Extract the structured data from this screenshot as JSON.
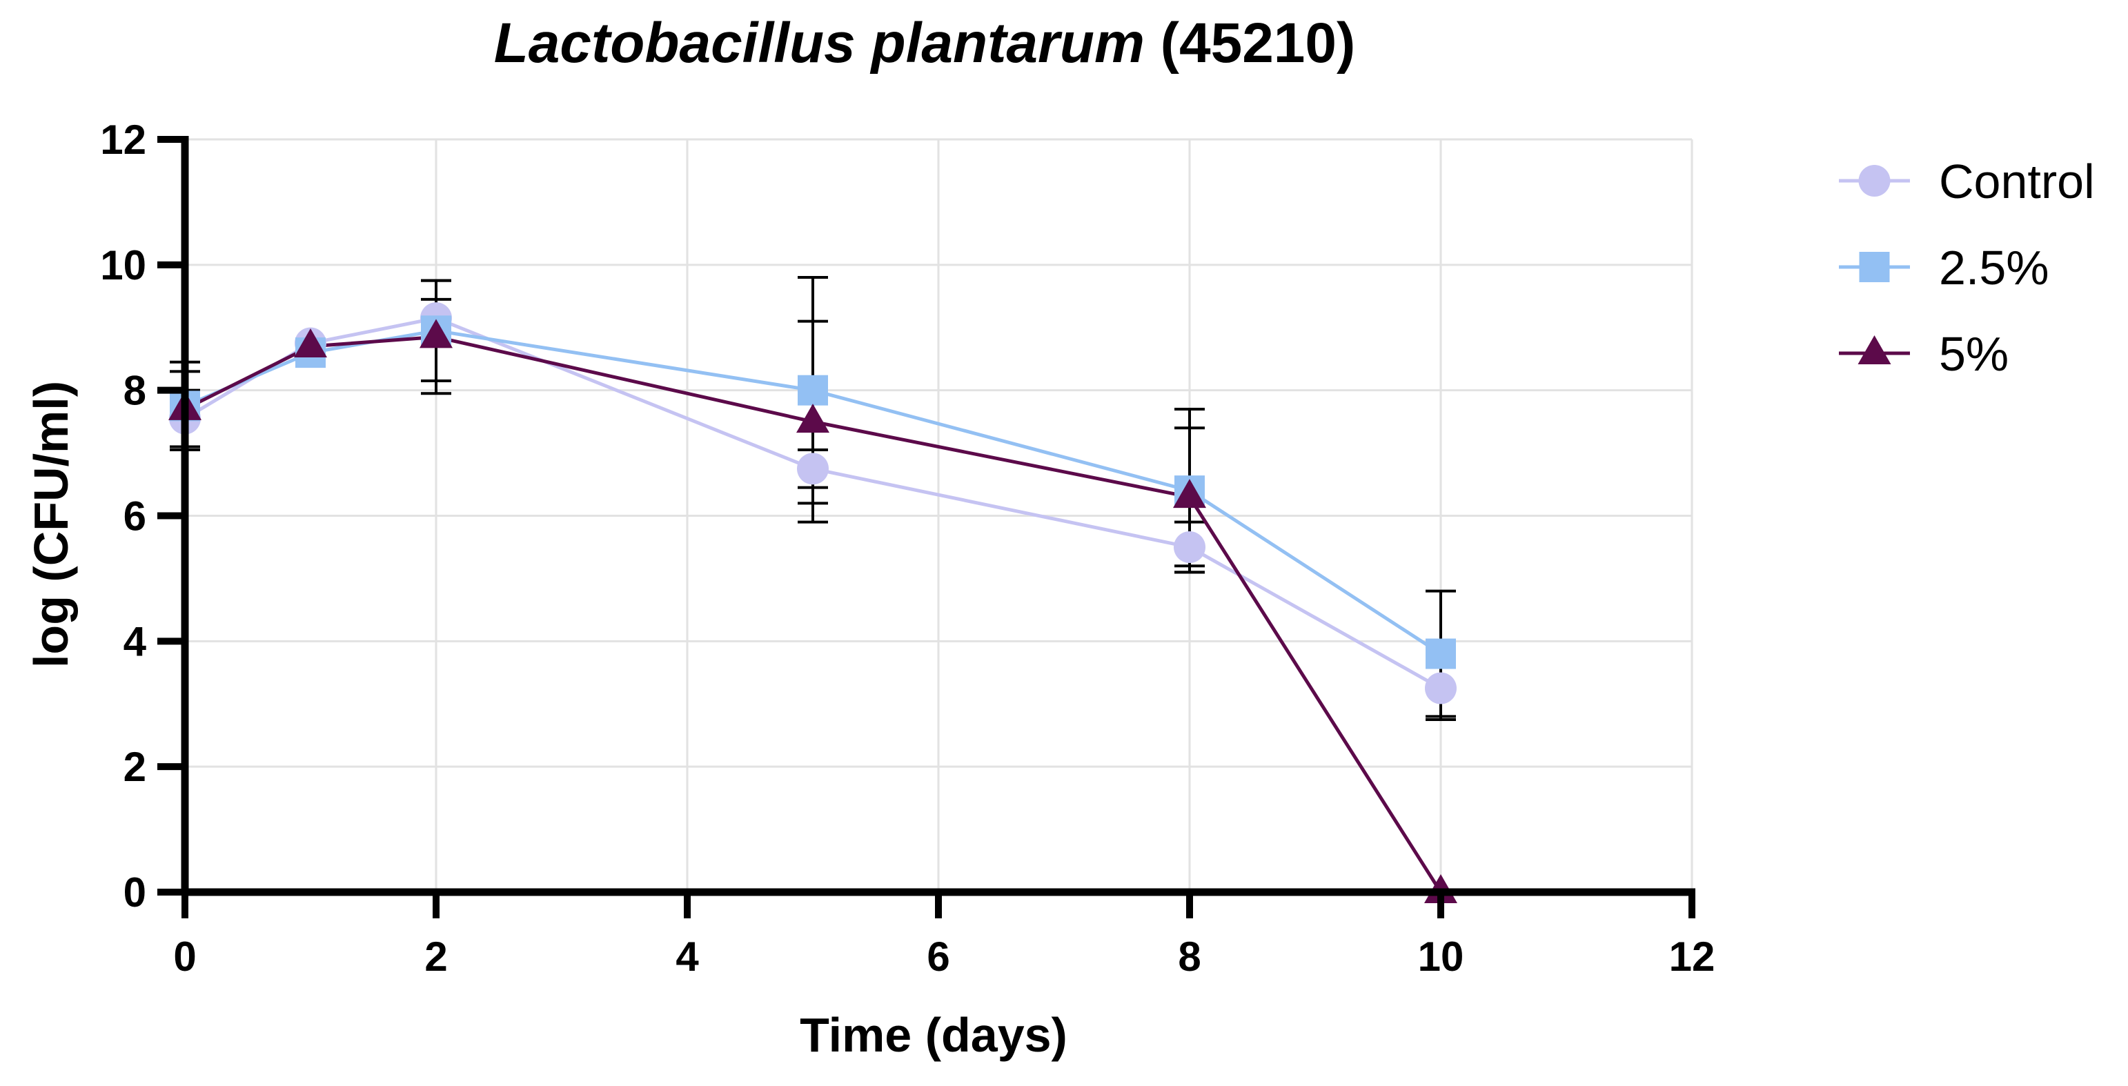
{
  "chart_data": {
    "type": "line",
    "title": "Lactobacillus plantarum (45210)",
    "title_italic_part": "Lactobacillus plantarum",
    "title_plain_part": " (45210)",
    "xlabel": "Time (days)",
    "ylabel": "log (CFU/ml)",
    "xlim": [
      0,
      12
    ],
    "ylim": [
      0,
      12
    ],
    "xticks": [
      "0",
      "2",
      "4",
      "6",
      "8",
      "10",
      "12"
    ],
    "yticks": [
      "0",
      "2",
      "4",
      "6",
      "8",
      "10",
      "12"
    ],
    "grid": true,
    "legend_position": "right",
    "series": [
      {
        "name": "Control",
        "marker": "circle",
        "color": "#c5c3f2",
        "x": [
          0,
          1,
          2,
          5,
          8,
          10
        ],
        "y": [
          7.55,
          8.75,
          9.15,
          6.75,
          5.5,
          3.25
        ],
        "err": [
          0.45,
          0.05,
          0.3,
          0.3,
          0.4,
          0.5
        ]
      },
      {
        "name": "2.5%",
        "marker": "square",
        "color": "#93c0f3",
        "x": [
          0,
          1,
          2,
          5,
          8,
          10
        ],
        "y": [
          7.75,
          8.6,
          8.95,
          8.0,
          6.4,
          3.8
        ],
        "err": [
          0.7,
          0.05,
          0.8,
          1.8,
          1.3,
          1.0
        ]
      },
      {
        "name": "5%",
        "marker": "triangle",
        "color": "#5c0a4a",
        "x": [
          0,
          1,
          2,
          5,
          8,
          10
        ],
        "y": [
          7.7,
          8.7,
          8.85,
          7.5,
          6.3,
          0
        ],
        "err": [
          0.6,
          0.05,
          0.9,
          1.6,
          1.1,
          0
        ]
      }
    ]
  }
}
